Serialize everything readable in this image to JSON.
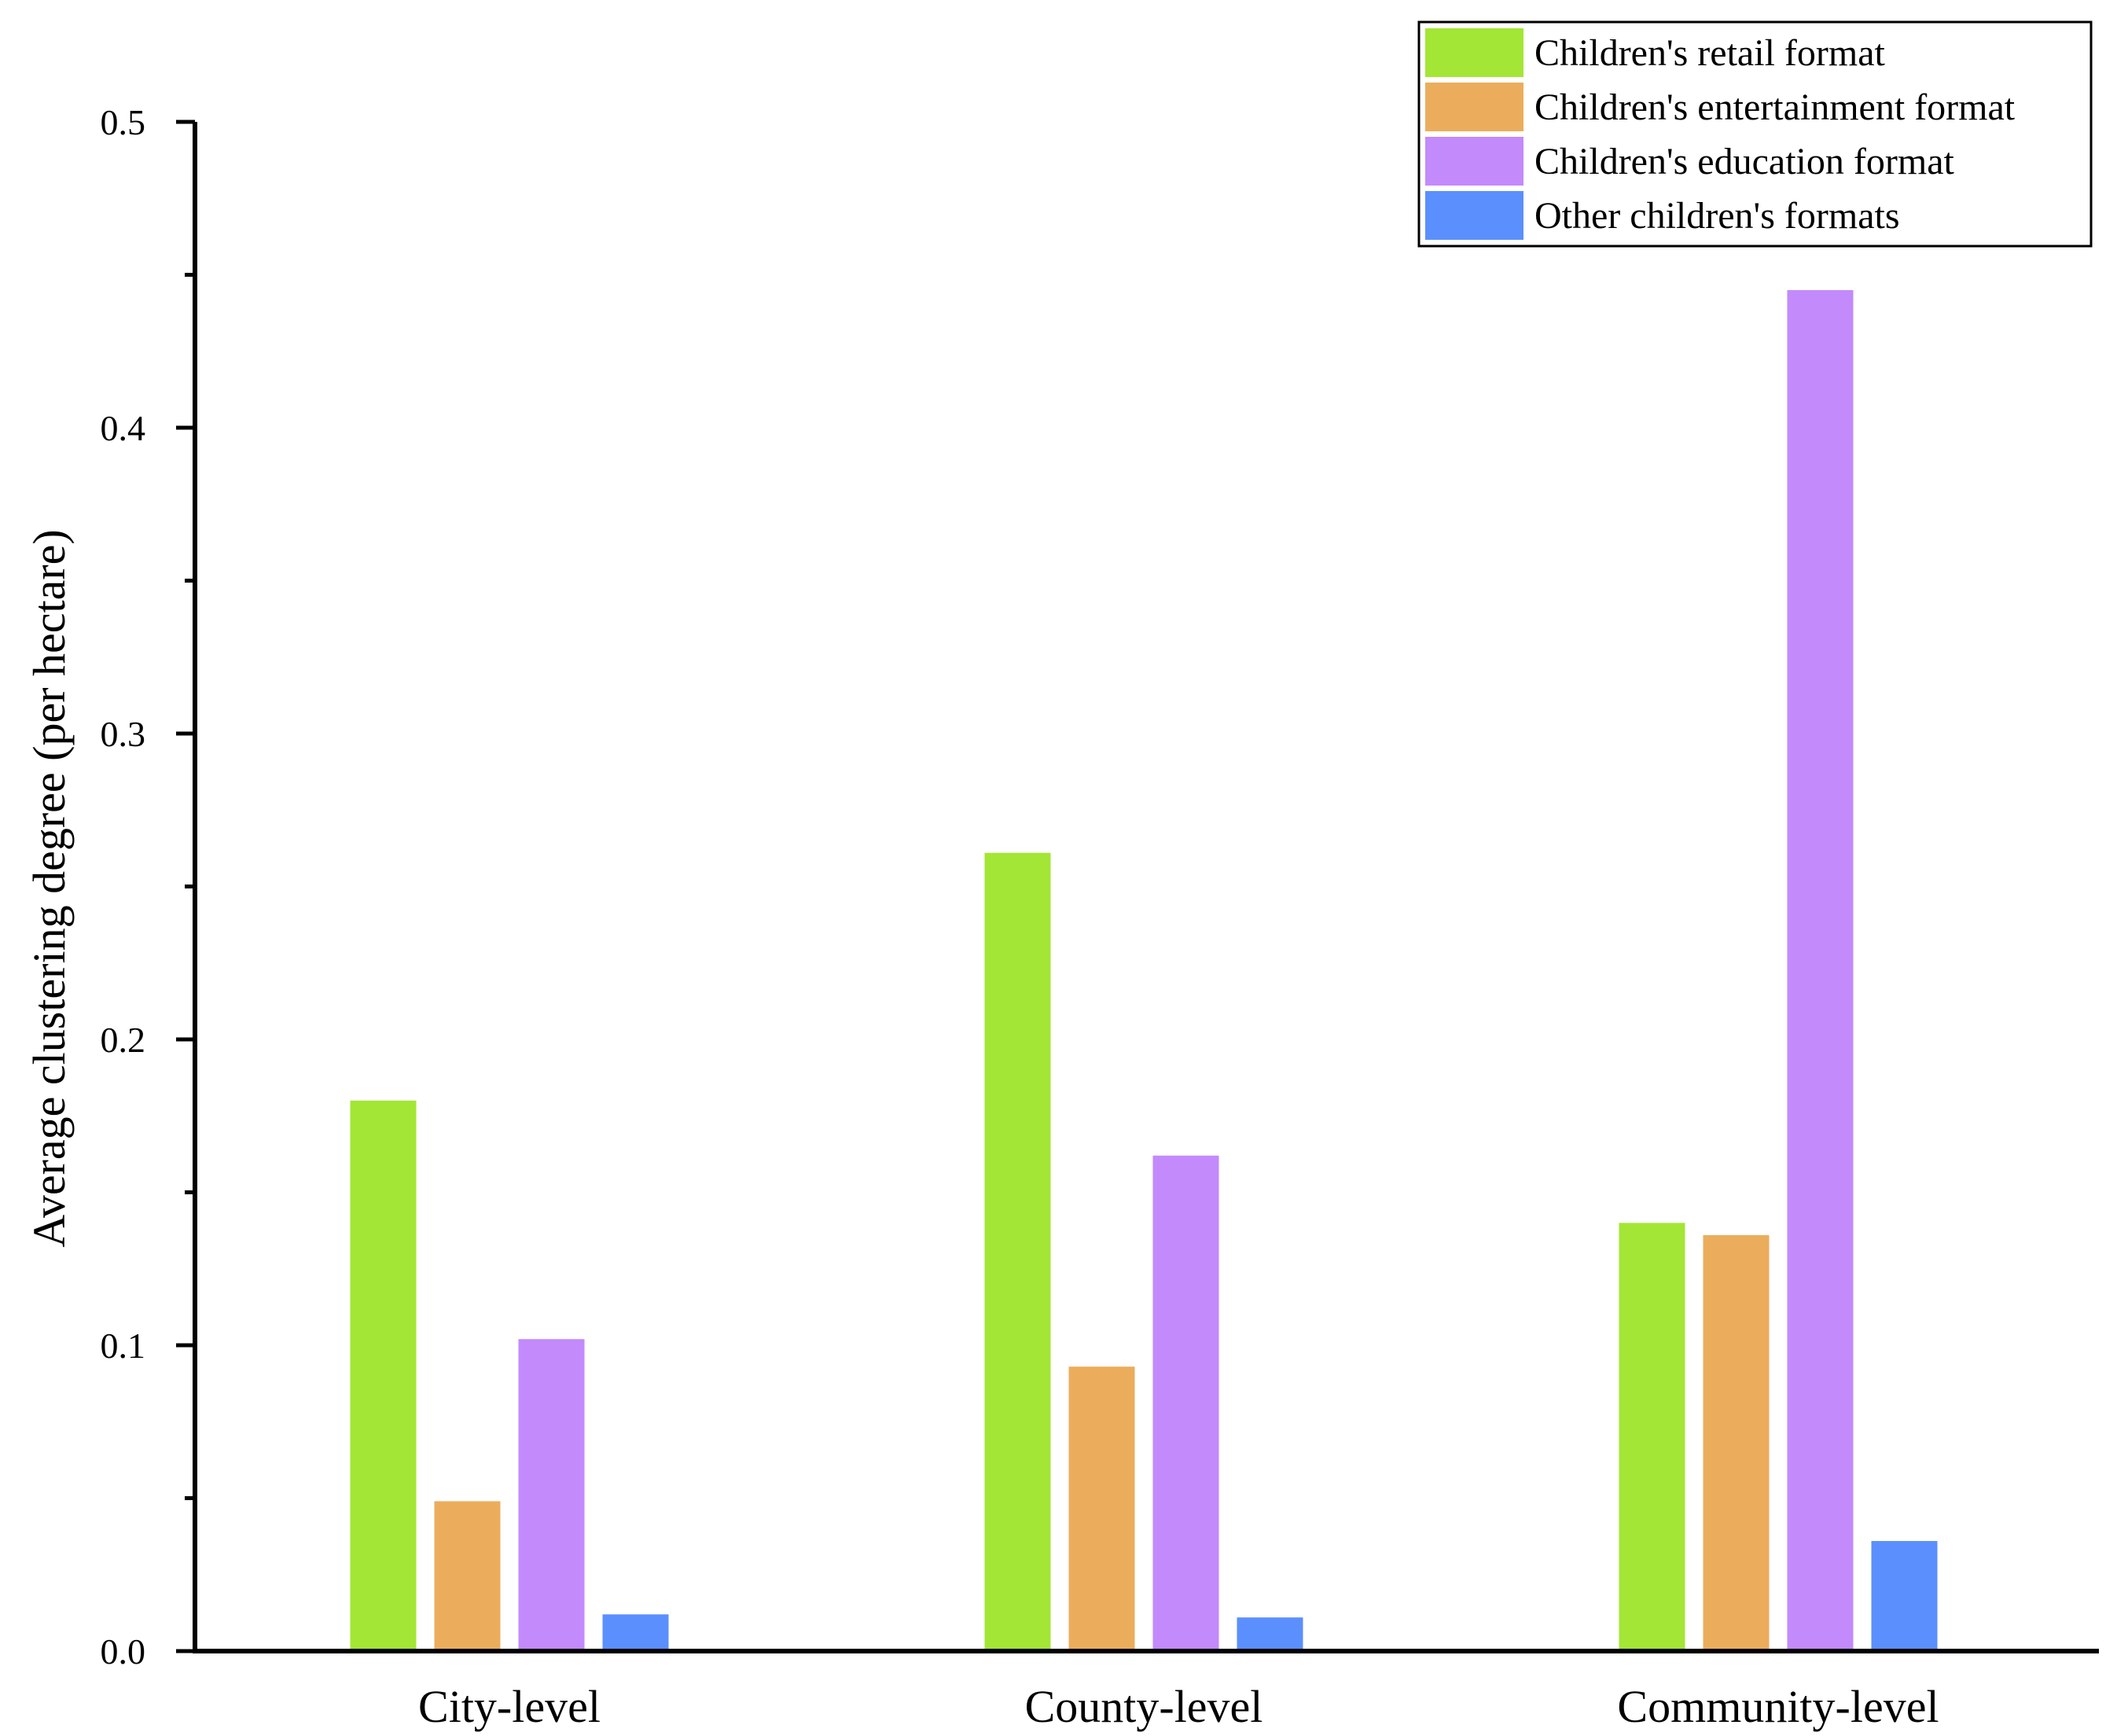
{
  "chart_data": {
    "type": "bar",
    "title": "",
    "xlabel": "",
    "ylabel": "Average clustering degree (per hectare)",
    "ylim": [
      0,
      0.5
    ],
    "yticks": [
      0.0,
      0.1,
      0.2,
      0.3,
      0.4,
      0.5
    ],
    "ytick_labels": [
      "0.0",
      "0.1",
      "0.2",
      "0.3",
      "0.4",
      "0.5"
    ],
    "categories": [
      "City-level",
      "County-level",
      "Community-level"
    ],
    "series": [
      {
        "name": "Children's retail format",
        "color": "#a3e635",
        "values": [
          0.18,
          0.261,
          0.14
        ]
      },
      {
        "name": "Children's entertainment format",
        "color": "#ebad5c",
        "values": [
          0.049,
          0.093,
          0.136
        ]
      },
      {
        "name": "Children's education format",
        "color": "#c38afb",
        "values": [
          0.102,
          0.162,
          0.445
        ]
      },
      {
        "name": "Other children's formats",
        "color": "#5b8ffd",
        "values": [
          0.012,
          0.011,
          0.036
        ]
      }
    ],
    "legend_position": "top-right"
  }
}
